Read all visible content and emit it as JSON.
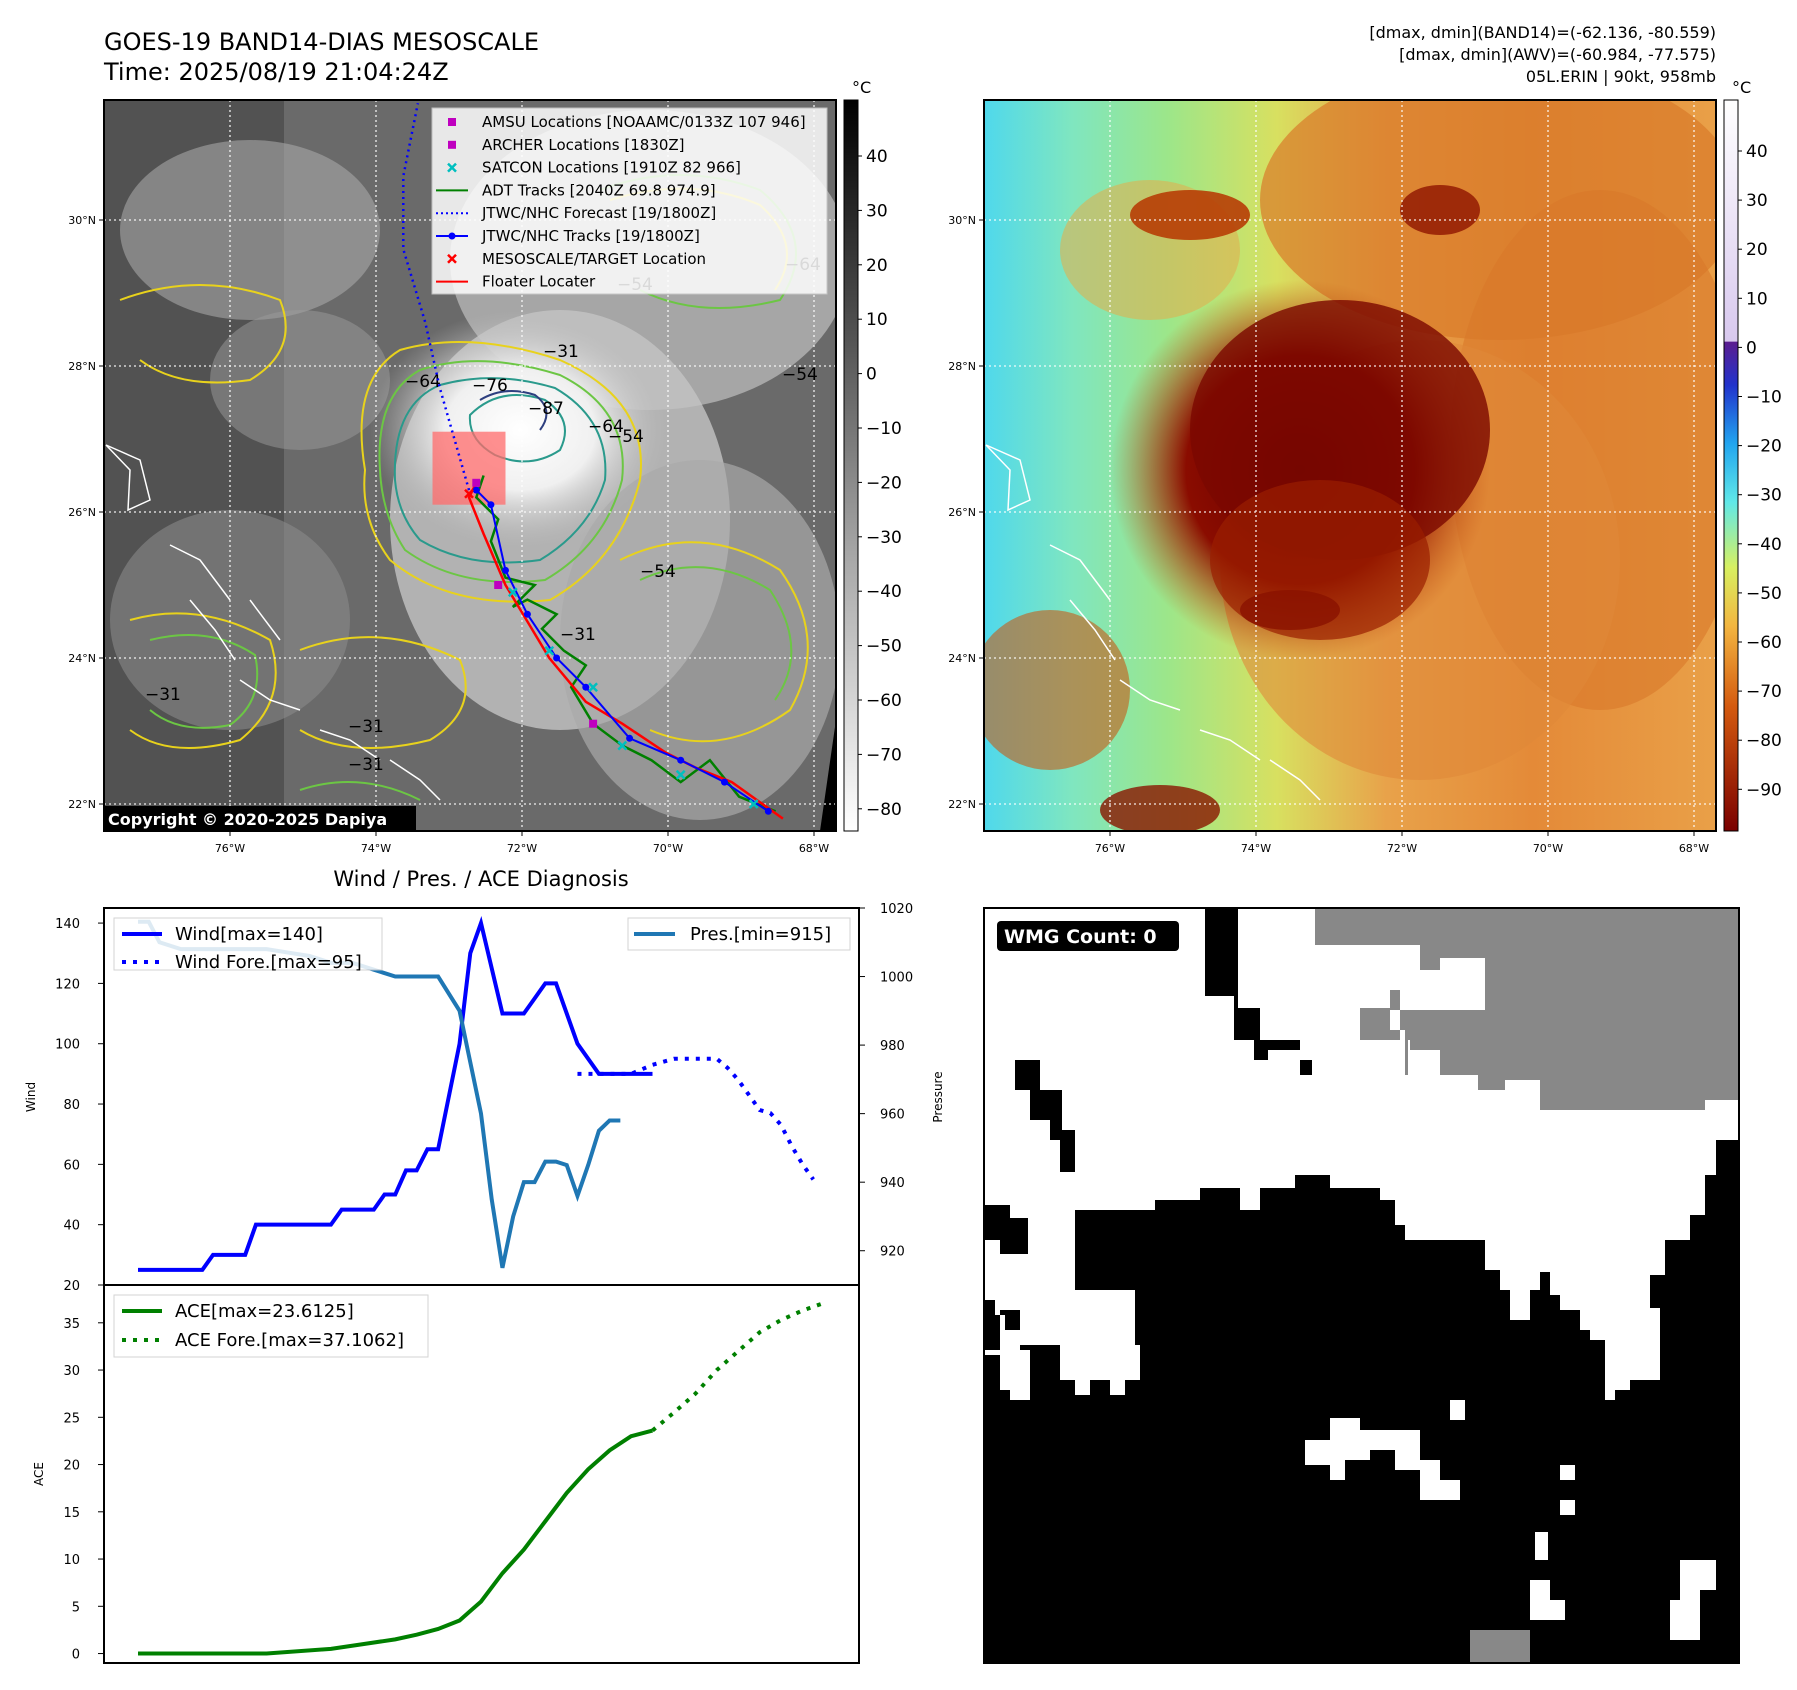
{
  "header": {
    "title": "GOES-19 BAND14-DIAS MESOSCALE",
    "time": "Time: 2025/08/19 21:04:24Z",
    "stats_band14": "[dmax, dmin](BAND14)=(-62.136, -80.559)",
    "stats_awv": "[dmax, dmin](AWV)=(-60.984, -77.575)",
    "storm": "05L.ERIN | 90kt, 958mb",
    "copyright": "Copyright © 2020-2025 Dapiya"
  },
  "colorbar_unit": "°C",
  "colors": {
    "wind": "#0000ff",
    "pressure": "#1f77b4",
    "ace": "#008000",
    "jtwc_track": "#0000ff",
    "adt_track": "#008000",
    "floater": "#ff0000",
    "amsu": "#bf00bf",
    "satcon": "#00bfbf",
    "contour_yellow": "#e8d21c",
    "contour_green": "#6cc644",
    "contour_teal": "#2a9a8c",
    "contour_navy": "#2e3f7f"
  },
  "chart_data": [
    {
      "type": "map",
      "panel": "ir",
      "xticks": [
        "76°W",
        "74°W",
        "72°W",
        "70°W",
        "68°W"
      ],
      "yticks": [
        "30°N",
        "28°N",
        "26°N",
        "24°N",
        "22°N"
      ],
      "colorbar_ticks": [
        "40",
        "30",
        "20",
        "10",
        "0",
        "−10",
        "−20",
        "−30",
        "−40",
        "−50",
        "−60",
        "−70",
        "−80"
      ],
      "contour_labels": [
        "−64",
        "−76",
        "−87",
        "−54",
        "−31",
        "−64",
        "−54",
        "−31",
        "−31",
        "−31",
        "−31",
        "−54",
        "−64",
        "−54"
      ],
      "legend": [
        {
          "label": "AMSU Locations [NOAAMC/0133Z 107 946]",
          "marker": "square",
          "color": "#bf00bf"
        },
        {
          "label": "ARCHER Locations [1830Z]",
          "marker": "square",
          "color": "#bf00bf"
        },
        {
          "label": "SATCON Locations [1910Z 82 966]",
          "marker": "x",
          "color": "#00bfbf"
        },
        {
          "label": "ADT Tracks [2040Z 69.8 974.9]",
          "marker": "line",
          "color": "#008000"
        },
        {
          "label": "JTWC/NHC Forecast [19/1800Z]",
          "marker": "dotted",
          "color": "#0000ff"
        },
        {
          "label": "JTWC/NHC Tracks [19/1800Z]",
          "marker": "dotline",
          "color": "#0000ff"
        },
        {
          "label": "MESOSCALE/TARGET Location",
          "marker": "x",
          "color": "#ff0000"
        },
        {
          "label": "Floater Locater",
          "marker": "line",
          "color": "#ff0000"
        }
      ],
      "jtwc_forecast": {
        "lon": [
          -72.7,
          -72.9,
          -73.1,
          -73.3,
          -73.6,
          -73.6,
          -73.4
        ],
        "lat": [
          26.3,
          27.0,
          27.7,
          28.6,
          29.6,
          30.6,
          31.6
        ]
      },
      "jtwc_track": {
        "lon": [
          -68.6,
          -69.2,
          -69.8,
          -70.5,
          -71.1,
          -71.5,
          -71.9,
          -72.2,
          -72.4,
          -72.6
        ],
        "lat": [
          21.9,
          22.3,
          22.6,
          22.9,
          23.6,
          24.0,
          24.6,
          25.2,
          26.1,
          26.3
        ]
      },
      "adt_track": {
        "lon": [
          -68.5,
          -69.0,
          -69.4,
          -69.8,
          -70.2,
          -70.6,
          -71.0,
          -71.3,
          -71.1,
          -71.4,
          -71.7,
          -71.5,
          -71.9,
          -72.1,
          -71.8,
          -72.2,
          -72.4,
          -72.3,
          -72.6,
          -72.5
        ],
        "lat": [
          21.9,
          22.1,
          22.6,
          22.3,
          22.6,
          22.8,
          23.1,
          23.6,
          23.9,
          24.1,
          24.4,
          24.6,
          24.8,
          24.7,
          25.0,
          25.1,
          25.6,
          25.9,
          26.2,
          26.5
        ]
      },
      "floater_track": {
        "lon": [
          -68.4,
          -69.1,
          -69.6,
          -70.0,
          -70.6,
          -71.1,
          -71.6,
          -71.9,
          -72.2,
          -72.5,
          -72.7,
          -72.6
        ],
        "lat": [
          21.8,
          22.3,
          22.5,
          22.7,
          23.1,
          23.4,
          24.0,
          24.5,
          25.0,
          25.7,
          26.2,
          26.4
        ]
      },
      "satcon": {
        "lon": [
          -68.8,
          -69.8,
          -70.6,
          -71.0,
          -71.6,
          -72.1
        ],
        "lat": [
          22.0,
          22.4,
          22.8,
          23.6,
          24.1,
          24.9
        ]
      },
      "amsu": {
        "lon": [
          -71.0,
          -72.6,
          -72.3
        ],
        "lat": [
          23.1,
          26.4,
          25.0
        ]
      },
      "target": {
        "lon": -72.7,
        "lat": 26.25
      },
      "target_box": {
        "lon": [
          -73.2,
          -72.2
        ],
        "lat": [
          26.1,
          27.1
        ]
      }
    },
    {
      "type": "map",
      "panel": "awv",
      "xticks": [
        "76°W",
        "74°W",
        "72°W",
        "70°W",
        "68°W"
      ],
      "yticks": [
        "30°N",
        "28°N",
        "26°N",
        "24°N",
        "22°N"
      ],
      "colorbar_ticks": [
        "40",
        "30",
        "20",
        "10",
        "0",
        "−10",
        "−20",
        "−30",
        "−40",
        "−50",
        "−60",
        "−70",
        "−80",
        "−90"
      ]
    },
    {
      "type": "line",
      "title": "Wind / Pres. / ACE Diagnosis",
      "ylabel_left": "Wind",
      "ylabel_right": "Pressure",
      "yticks_left": [
        "140",
        "120",
        "100",
        "80",
        "60",
        "40",
        "20"
      ],
      "yticks_right": [
        "1020",
        "1000",
        "980",
        "960",
        "940",
        "920"
      ],
      "ylim_left": [
        20,
        145
      ],
      "ylim_right": [
        910,
        1020
      ],
      "x_count": 60,
      "series": [
        {
          "name": "Wind[max=140]",
          "style": "solid",
          "x": [
            0,
            6,
            7,
            10,
            11,
            12,
            14,
            18,
            19,
            20,
            22,
            23,
            24,
            25,
            26,
            27,
            28,
            30,
            31,
            32,
            33,
            34,
            35,
            36,
            37,
            38,
            39,
            40,
            41,
            43,
            44,
            46,
            47,
            48
          ],
          "values": [
            25,
            25,
            30,
            30,
            40,
            40,
            40,
            40,
            45,
            45,
            45,
            50,
            50,
            58,
            58,
            65,
            65,
            100,
            130,
            140,
            125,
            110,
            110,
            110,
            115,
            120,
            120,
            110,
            100,
            90,
            90,
            90,
            90,
            90
          ]
        },
        {
          "name": "Wind Fore.[max=95]",
          "style": "dotted",
          "x": [
            41,
            44,
            46,
            48,
            50,
            52,
            54,
            55,
            56,
            58,
            59,
            60,
            61,
            62,
            63
          ],
          "values": [
            90,
            90,
            90,
            93,
            95,
            95,
            95,
            92,
            88,
            78,
            77,
            73,
            66,
            60,
            55
          ]
        },
        {
          "name": "Pres.[min=915]",
          "style": "solid",
          "x": [
            0,
            1,
            2,
            4,
            6,
            10,
            12,
            14,
            16,
            18,
            20,
            22,
            24,
            26,
            28,
            30,
            31,
            32,
            33,
            34,
            35,
            36,
            37,
            38,
            39,
            40,
            41,
            42,
            43,
            44,
            45
          ],
          "values": [
            1016,
            1016,
            1010,
            1008,
            1008,
            1008,
            1008,
            1007,
            1006,
            1004,
            1004,
            1002,
            1000,
            1000,
            1000,
            990,
            975,
            960,
            935,
            915,
            930,
            940,
            940,
            946,
            946,
            945,
            936,
            945,
            955,
            958,
            958
          ]
        }
      ]
    },
    {
      "type": "line",
      "ylabel": "ACE",
      "yticks": [
        "35",
        "30",
        "25",
        "20",
        "15",
        "10",
        "5",
        "0"
      ],
      "ylim": [
        -1,
        39
      ],
      "series": [
        {
          "name": "ACE[max=23.6125]",
          "style": "solid",
          "x": [
            0,
            6,
            12,
            18,
            21,
            24,
            26,
            28,
            30,
            31,
            32,
            34,
            36,
            38,
            40,
            42,
            44,
            46,
            48
          ],
          "values": [
            0,
            0,
            0,
            0.5,
            1.0,
            1.5,
            2.0,
            2.6,
            3.5,
            4.5,
            5.5,
            8.5,
            11,
            14,
            17,
            19.5,
            21.5,
            23.0,
            23.6
          ]
        },
        {
          "name": "ACE Fore.[max=37.1062]",
          "style": "dotted",
          "x": [
            48,
            50,
            52,
            54,
            56,
            58,
            60,
            62,
            64
          ],
          "values": [
            23.6,
            25.5,
            27.5,
            30,
            32,
            34,
            35.3,
            36.3,
            37.1
          ]
        }
      ]
    },
    {
      "type": "heatmap",
      "panel": "wmg",
      "label": "WMG Count: 0"
    }
  ]
}
